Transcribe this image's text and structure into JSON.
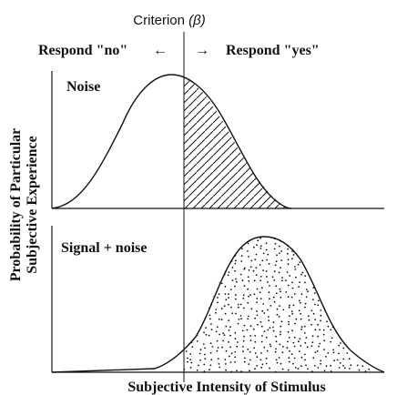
{
  "criterion": {
    "label": "Criterion",
    "symbol": "(β)"
  },
  "responses": {
    "no": "Respond \"no\"",
    "yes": "Respond \"yes\"",
    "left_arrow": "←",
    "right_arrow": "→"
  },
  "panels": {
    "noise": {
      "label": "Noise"
    },
    "signal": {
      "label": "Signal + noise"
    }
  },
  "axes": {
    "y_label_line1": "Probability of Particular",
    "y_label_line2": "Subjective Experience",
    "x_label": "Subjective Intensity of Stimulus"
  },
  "colors": {
    "ink": "#111111",
    "background": "#ffffff"
  }
}
